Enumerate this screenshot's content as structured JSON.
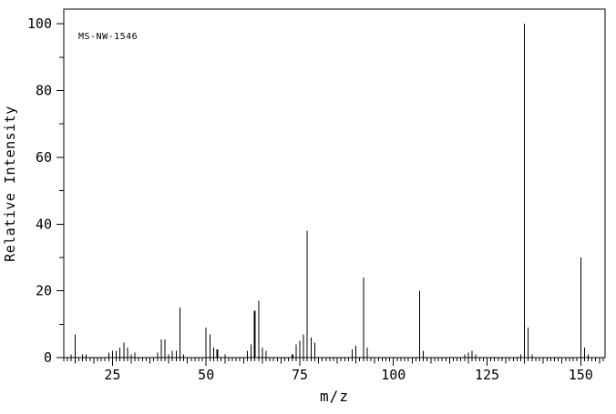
{
  "figure": {
    "annotation": "MS-NW-1546",
    "xlabel": "m/z",
    "ylabel": "Relative Intensity"
  },
  "chart_data": {
    "type": "bar",
    "subtype": "mass-spectrum-stick-plot",
    "title": "MS-NW-1546",
    "xlabel": "m/z",
    "ylabel": "Relative Intensity",
    "xlim": [
      12,
      156.5
    ],
    "ylim": [
      0,
      104.4
    ],
    "x_major_ticks": [
      25,
      50,
      75,
      100,
      125,
      150
    ],
    "y_major_ticks": [
      0,
      20,
      40,
      60,
      80,
      100
    ],
    "x_minor_step": 1,
    "x_medium_step": 5,
    "y_minor_step": 10,
    "grid": false,
    "line_color": "#000000",
    "background_color": "#ffffff",
    "peaks": [
      [
        14,
        1
      ],
      [
        15,
        7
      ],
      [
        17,
        1
      ],
      [
        18,
        1
      ],
      [
        24,
        1.5
      ],
      [
        25,
        2
      ],
      [
        26,
        2
      ],
      [
        27,
        3
      ],
      [
        28,
        4.5
      ],
      [
        29,
        3
      ],
      [
        30,
        1
      ],
      [
        31,
        1.5
      ],
      [
        37,
        1.5
      ],
      [
        38,
        5.5
      ],
      [
        39,
        5.5
      ],
      [
        40,
        1
      ],
      [
        41,
        2
      ],
      [
        42,
        2
      ],
      [
        43,
        15
      ],
      [
        44,
        1
      ],
      [
        50,
        9
      ],
      [
        51,
        7
      ],
      [
        52,
        3
      ],
      [
        53,
        2.5,
        2
      ],
      [
        55,
        1
      ],
      [
        61,
        2
      ],
      [
        62,
        4
      ],
      [
        63,
        14,
        2
      ],
      [
        64,
        17
      ],
      [
        65,
        3
      ],
      [
        66,
        2
      ],
      [
        73,
        1,
        2
      ],
      [
        74,
        4
      ],
      [
        75,
        5
      ],
      [
        76,
        7
      ],
      [
        77,
        38
      ],
      [
        78,
        6
      ],
      [
        79,
        4.5
      ],
      [
        89,
        2.5
      ],
      [
        90,
        3.5
      ],
      [
        92,
        24
      ],
      [
        93,
        3
      ],
      [
        107,
        20
      ],
      [
        108,
        2
      ],
      [
        119,
        1
      ],
      [
        120,
        1.5
      ],
      [
        121,
        2
      ],
      [
        122,
        1
      ],
      [
        134,
        1
      ],
      [
        135,
        100
      ],
      [
        136,
        9
      ],
      [
        137,
        1
      ],
      [
        150,
        30
      ],
      [
        151,
        3
      ],
      [
        152,
        1
      ]
    ]
  }
}
